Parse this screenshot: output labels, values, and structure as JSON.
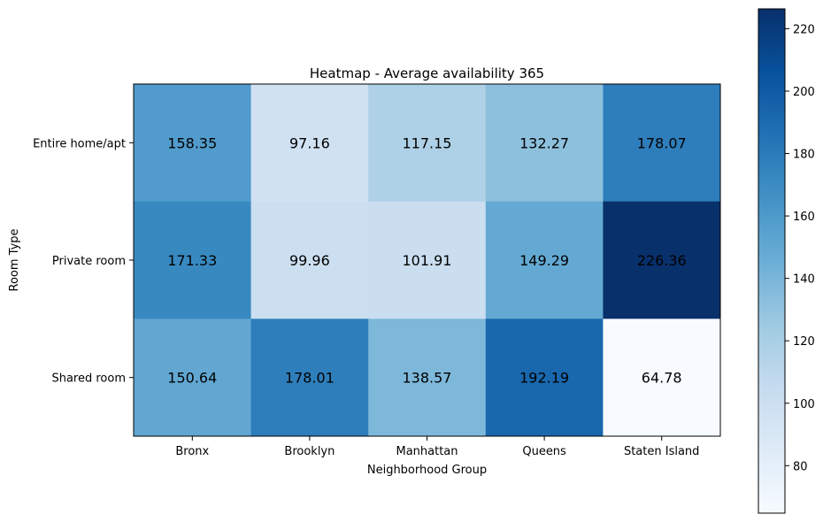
{
  "chart_data": {
    "type": "heatmap",
    "title": "Heatmap - Average availability 365",
    "xlabel": "Neighborhood Group",
    "ylabel": "Room Type",
    "x_categories": [
      "Bronx",
      "Brooklyn",
      "Manhattan",
      "Queens",
      "Staten Island"
    ],
    "y_categories": [
      "Entire home/apt",
      "Private room",
      "Shared room"
    ],
    "values": [
      [
        158.35,
        97.16,
        117.15,
        132.27,
        178.07
      ],
      [
        171.33,
        99.96,
        101.91,
        149.29,
        226.36
      ],
      [
        150.64,
        178.01,
        138.57,
        192.19,
        64.78
      ]
    ],
    "value_labels": [
      [
        "158.35",
        "97.16",
        "117.15",
        "132.27",
        "178.07"
      ],
      [
        "171.33",
        "99.96",
        "101.91",
        "149.29",
        "226.36"
      ],
      [
        "150.64",
        "178.01",
        "138.57",
        "192.19",
        "64.78"
      ]
    ],
    "colormap": "Blues",
    "colorbar": {
      "range": [
        64.78,
        226.36
      ],
      "ticks": [
        80,
        100,
        120,
        140,
        160,
        180,
        200,
        220
      ],
      "tick_labels": [
        "80",
        "100",
        "120",
        "140",
        "160",
        "180",
        "200",
        "220"
      ]
    }
  }
}
